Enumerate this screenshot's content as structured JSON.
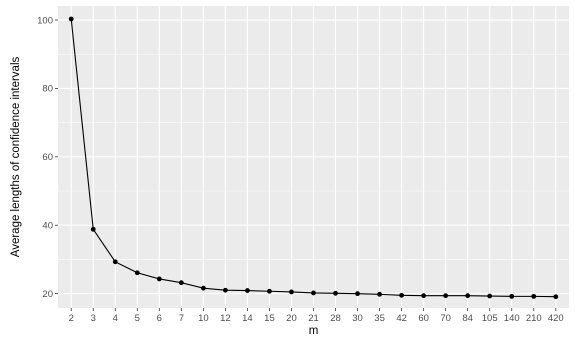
{
  "chart_data": {
    "type": "line",
    "title": "",
    "xlabel": "m",
    "ylabel": "Average lengths of confidence intervals",
    "categories": [
      "2",
      "3",
      "4",
      "5",
      "6",
      "7",
      "10",
      "12",
      "14",
      "15",
      "20",
      "21",
      "28",
      "30",
      "35",
      "42",
      "60",
      "70",
      "84",
      "105",
      "140",
      "210",
      "420"
    ],
    "values": [
      100.3,
      38.8,
      29.3,
      26.1,
      24.3,
      23.2,
      21.6,
      21.0,
      20.9,
      20.7,
      20.5,
      20.2,
      20.1,
      20.0,
      19.8,
      19.5,
      19.4,
      19.4,
      19.4,
      19.3,
      19.2,
      19.2,
      19.1
    ],
    "yticks": [
      20,
      40,
      60,
      80,
      100
    ],
    "ylim": [
      15.8,
      104.1
    ],
    "grid": true,
    "panel_background": "#ebebeb",
    "grid_color": "#ffffff",
    "line_color": "#000000",
    "point_color": "#000000"
  }
}
